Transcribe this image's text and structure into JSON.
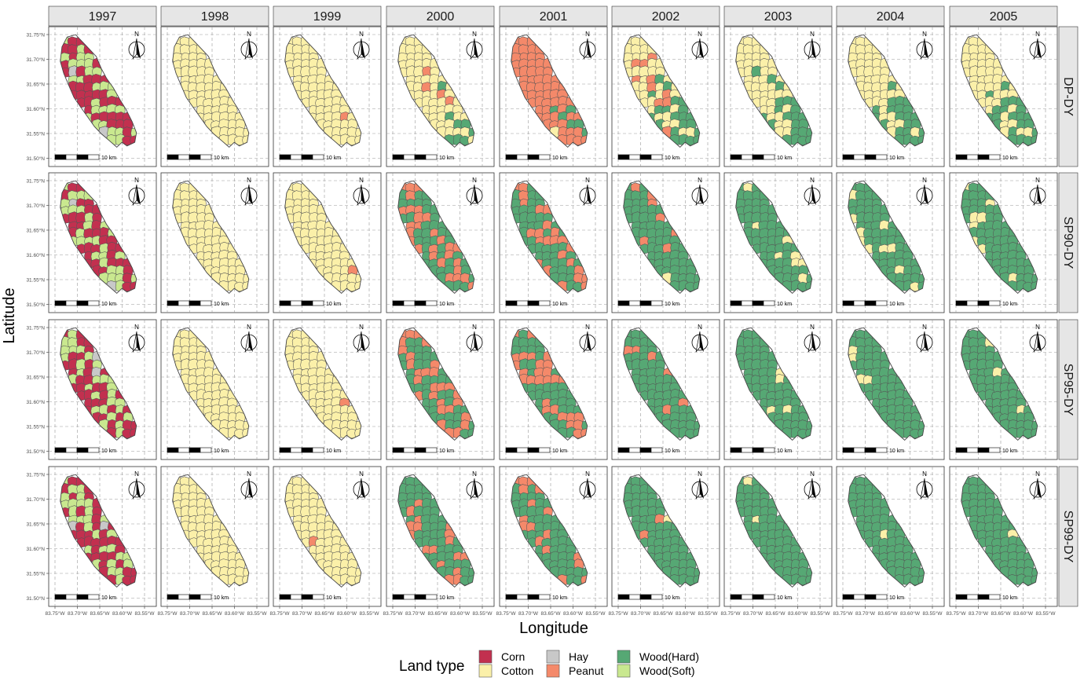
{
  "columns": [
    "1997",
    "1998",
    "1999",
    "2000",
    "2001",
    "2002",
    "2003",
    "2004",
    "2005"
  ],
  "rows": [
    "DP-DY",
    "SP90-DY",
    "SP95-DY",
    "SP99-DY"
  ],
  "axes": {
    "x_title": "Longitude",
    "y_title": "Latitude",
    "y_ticks": [
      "31.75°N",
      "31.70°N",
      "31.65°N",
      "31.60°N",
      "31.55°N",
      "31.50°N"
    ],
    "x_ticks": [
      "83.75°W",
      "83.70°W",
      "83.65°W",
      "83.60°W",
      "83.55°W"
    ]
  },
  "scale_bar_label": "10 km",
  "north_label": "N",
  "legend": {
    "title": "Land type",
    "items": [
      {
        "key": "corn",
        "label": "Corn",
        "color": "#c2304f"
      },
      {
        "key": "cotton",
        "label": "Cotton",
        "color": "#fbf0a9"
      },
      {
        "key": "hay",
        "label": "Hay",
        "color": "#c8c8c8"
      },
      {
        "key": "peanut",
        "label": "Peanut",
        "color": "#f4896a"
      },
      {
        "key": "woodhard",
        "label": "Wood(Hard)",
        "color": "#56a874"
      },
      {
        "key": "woodsoft",
        "label": "Wood(Soft)",
        "color": "#c9e88f"
      }
    ]
  },
  "grid": {
    "1997": {
      "DP-DY": {
        "corn": 0.55,
        "woodsoft": 0.42,
        "hay": 0.03
      },
      "SP90-DY": {
        "corn": 0.55,
        "woodsoft": 0.42,
        "hay": 0.03
      },
      "SP95-DY": {
        "corn": 0.55,
        "woodsoft": 0.42,
        "hay": 0.03
      },
      "SP99-DY": {
        "corn": 0.55,
        "woodsoft": 0.42,
        "hay": 0.03
      }
    },
    "1998": {
      "DP-DY": {
        "cotton": 1.0
      },
      "SP90-DY": {
        "cotton": 1.0
      },
      "SP95-DY": {
        "cotton": 1.0
      },
      "SP99-DY": {
        "cotton": 1.0
      }
    },
    "1999": {
      "DP-DY": {
        "cotton": 0.99,
        "peanut": 0.01
      },
      "SP90-DY": {
        "cotton": 0.99,
        "peanut": 0.01
      },
      "SP95-DY": {
        "cotton": 0.99,
        "peanut": 0.01
      },
      "SP99-DY": {
        "cotton": 0.99,
        "peanut": 0.01
      }
    },
    "2000": {
      "DP-DY": {
        "cotton": 0.82,
        "peanut": 0.06,
        "woodhard": 0.12
      },
      "SP90-DY": {
        "woodhard": 0.6,
        "peanut": 0.4
      },
      "SP95-DY": {
        "woodhard": 0.6,
        "peanut": 0.4
      },
      "SP99-DY": {
        "woodhard": 0.75,
        "peanut": 0.25
      }
    },
    "2001": {
      "DP-DY": {
        "peanut": 0.9,
        "woodhard": 0.08,
        "cotton": 0.02
      },
      "SP90-DY": {
        "woodhard": 0.65,
        "peanut": 0.35
      },
      "SP95-DY": {
        "woodhard": 0.6,
        "peanut": 0.4
      },
      "SP99-DY": {
        "woodhard": 0.75,
        "peanut": 0.25
      }
    },
    "2002": {
      "DP-DY": {
        "cotton": 0.55,
        "peanut": 0.15,
        "woodhard": 0.3
      },
      "SP90-DY": {
        "woodhard": 0.88,
        "peanut": 0.1,
        "cotton": 0.02
      },
      "SP95-DY": {
        "woodhard": 0.92,
        "peanut": 0.08
      },
      "SP99-DY": {
        "woodhard": 0.95,
        "peanut": 0.04,
        "cotton": 0.01
      }
    },
    "2003": {
      "DP-DY": {
        "cotton": 0.68,
        "woodhard": 0.32
      },
      "SP90-DY": {
        "woodhard": 0.88,
        "cotton": 0.12
      },
      "SP95-DY": {
        "woodhard": 0.94,
        "cotton": 0.06
      },
      "SP99-DY": {
        "woodhard": 0.97,
        "cotton": 0.03
      }
    },
    "2004": {
      "DP-DY": {
        "cotton": 0.68,
        "woodhard": 0.32
      },
      "SP90-DY": {
        "woodhard": 0.86,
        "cotton": 0.14
      },
      "SP95-DY": {
        "woodhard": 0.94,
        "cotton": 0.06
      },
      "SP99-DY": {
        "woodhard": 0.98,
        "cotton": 0.02
      }
    },
    "2005": {
      "DP-DY": {
        "cotton": 0.68,
        "woodhard": 0.32
      },
      "SP90-DY": {
        "woodhard": 0.88,
        "cotton": 0.12
      },
      "SP95-DY": {
        "woodhard": 0.95,
        "cotton": 0.05
      },
      "SP99-DY": {
        "woodhard": 0.99,
        "cotton": 0.01
      }
    }
  }
}
